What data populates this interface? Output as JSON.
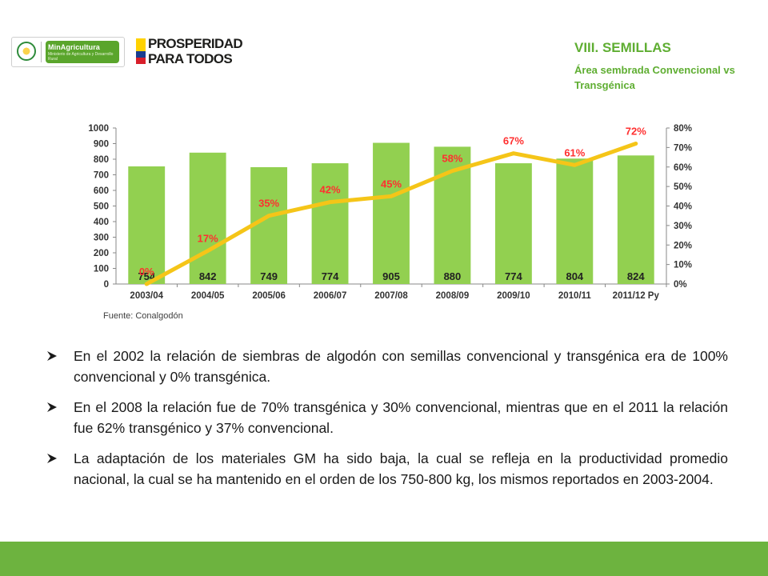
{
  "logos": {
    "minagricultura_name": "MinAgricultura",
    "minagricultura_sub": "Ministerio de Agricultura y Desarrollo Rural",
    "prosperidad_line1": "PROSPERIDAD",
    "prosperidad_line2": "PARA TODOS"
  },
  "header": {
    "title": "VIII. SEMILLAS",
    "subtitle": "Área sembrada Convencional vs Transgénica"
  },
  "chart_data": {
    "type": "bar",
    "categories": [
      "2003/04",
      "2004/05",
      "2005/06",
      "2006/07",
      "2007/08",
      "2008/09",
      "2009/10",
      "2010/11",
      "2011/12 Py"
    ],
    "series": [
      {
        "type": "bar",
        "values": [
          754,
          842,
          749,
          774,
          905,
          880,
          774,
          804,
          824
        ],
        "labels": [
          "754",
          "842",
          "749",
          "774",
          "905",
          "880",
          "774",
          "804",
          "824"
        ],
        "color": "#92d050",
        "axis": "left"
      },
      {
        "type": "line",
        "values": [
          0,
          17,
          35,
          42,
          45,
          58,
          67,
          61,
          72
        ],
        "labels": [
          "0%",
          "17%",
          "35%",
          "42%",
          "45%",
          "58%",
          "67%",
          "61%",
          "72%"
        ],
        "color": "#f5c518",
        "label_color": "#ff3030",
        "axis": "right"
      }
    ],
    "y_left": {
      "min": 0,
      "max": 1000,
      "ticks": [
        "0",
        "100",
        "200",
        "300",
        "400",
        "500",
        "600",
        "700",
        "800",
        "900",
        "1000"
      ]
    },
    "y_right": {
      "min": 0,
      "max": 80,
      "ticks": [
        "0%",
        "10%",
        "20%",
        "30%",
        "40%",
        "50%",
        "60%",
        "70%",
        "80%"
      ]
    },
    "grid": false,
    "legend": "none"
  },
  "source": "Fuente: Conalgodón",
  "bullets": [
    "En el 2002 la relación de siembras de algodón con semillas convencional  y transgénica era de 100% convencional y 0% transgénica.",
    "En el 2008 la relación fue de 70% transgénica y 30% convencional, mientras que en el 2011 la relación fue 62% transgénico y 37% convencional.",
    "La adaptación de los materiales GM ha sido baja, la cual se refleja en la productividad promedio nacional, la cual se ha mantenido en el orden de los 750-800 kg, los mismos reportados en 2003-2004."
  ],
  "colors": {
    "accent_green": "#6db33f",
    "title_green": "#5fae32",
    "bar_green": "#92d050",
    "line_yellow": "#f5c518"
  }
}
